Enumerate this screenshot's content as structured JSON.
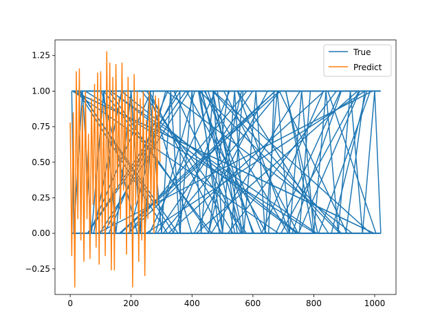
{
  "chart_data": {
    "type": "line",
    "title": "",
    "xlabel": "",
    "ylabel": "",
    "xlim": [
      -50,
      1070
    ],
    "ylim": [
      -0.43,
      1.36
    ],
    "xticks": [
      0,
      200,
      400,
      600,
      800,
      1000
    ],
    "yticks": [
      -0.25,
      0.0,
      0.25,
      0.5,
      0.75,
      1.0,
      1.25
    ],
    "xtick_labels": [
      "0",
      "200",
      "400",
      "600",
      "800",
      "1000"
    ],
    "ytick_labels": [
      "−0.25",
      "0.00",
      "0.25",
      "0.50",
      "0.75",
      "1.00",
      "1.25"
    ],
    "grid": false,
    "legend": {
      "placement": "top-right",
      "entries": [
        "True",
        "Predict"
      ]
    },
    "series": [
      {
        "name": "True",
        "color": "#1f77b4",
        "description_of_extent": "values in [0, 1], x from 0 to 1020",
        "x": [
          5,
          12,
          40,
          70,
          110,
          150,
          200,
          230,
          260,
          300,
          330,
          360,
          400,
          430,
          470,
          500,
          540,
          570,
          610,
          640,
          680,
          720,
          760,
          800,
          840,
          880,
          920,
          960,
          1000,
          1020
        ],
        "values": [
          1.0,
          0.0,
          1.0,
          0.0,
          1.0,
          0.0,
          1.0,
          0.0,
          1.0,
          0.0,
          1.0,
          0.0,
          1.0,
          0.0,
          1.0,
          0.0,
          1.0,
          0.0,
          1.0,
          0.0,
          1.0,
          0.0,
          1.0,
          0.0,
          1.0,
          0.0,
          1.0,
          0.0,
          1.0,
          0.0
        ]
      },
      {
        "name": "Predict",
        "color": "#ff7f0e",
        "x": [
          0,
          5,
          10,
          15,
          20,
          25,
          30,
          35,
          40,
          45,
          50,
          55,
          60,
          65,
          70,
          75,
          80,
          85,
          90,
          95,
          100,
          105,
          110,
          115,
          120,
          125,
          130,
          135,
          140,
          145,
          150,
          155,
          160,
          165,
          170,
          175,
          180,
          185,
          190,
          195,
          200,
          205,
          210,
          215,
          220,
          225,
          230,
          235,
          240,
          245,
          250,
          255,
          260,
          265,
          270,
          275,
          280,
          285,
          290,
          295
        ],
        "values": [
          0.78,
          -0.16,
          0.85,
          -0.38,
          1.14,
          0.1,
          1.16,
          -0.05,
          0.9,
          -0.2,
          1.0,
          0.1,
          0.7,
          -0.18,
          0.95,
          0.2,
          1.05,
          -0.1,
          1.13,
          -0.22,
          1.14,
          0.0,
          0.9,
          -0.16,
          1.28,
          0.05,
          1.2,
          -0.26,
          1.1,
          -0.26,
          1.19,
          0.3,
          0.95,
          0.1,
          1.2,
          0.3,
          1.0,
          -0.15,
          1.1,
          0.0,
          0.95,
          -0.38,
          1.12,
          0.2,
          1.0,
          -0.2,
          0.95,
          -0.05,
          1.0,
          -0.3,
          0.8,
          0.1,
          1.0,
          0.2,
          0.9,
          0.0,
          0.97,
          0.2,
          0.95,
          0.5
        ]
      }
    ]
  }
}
